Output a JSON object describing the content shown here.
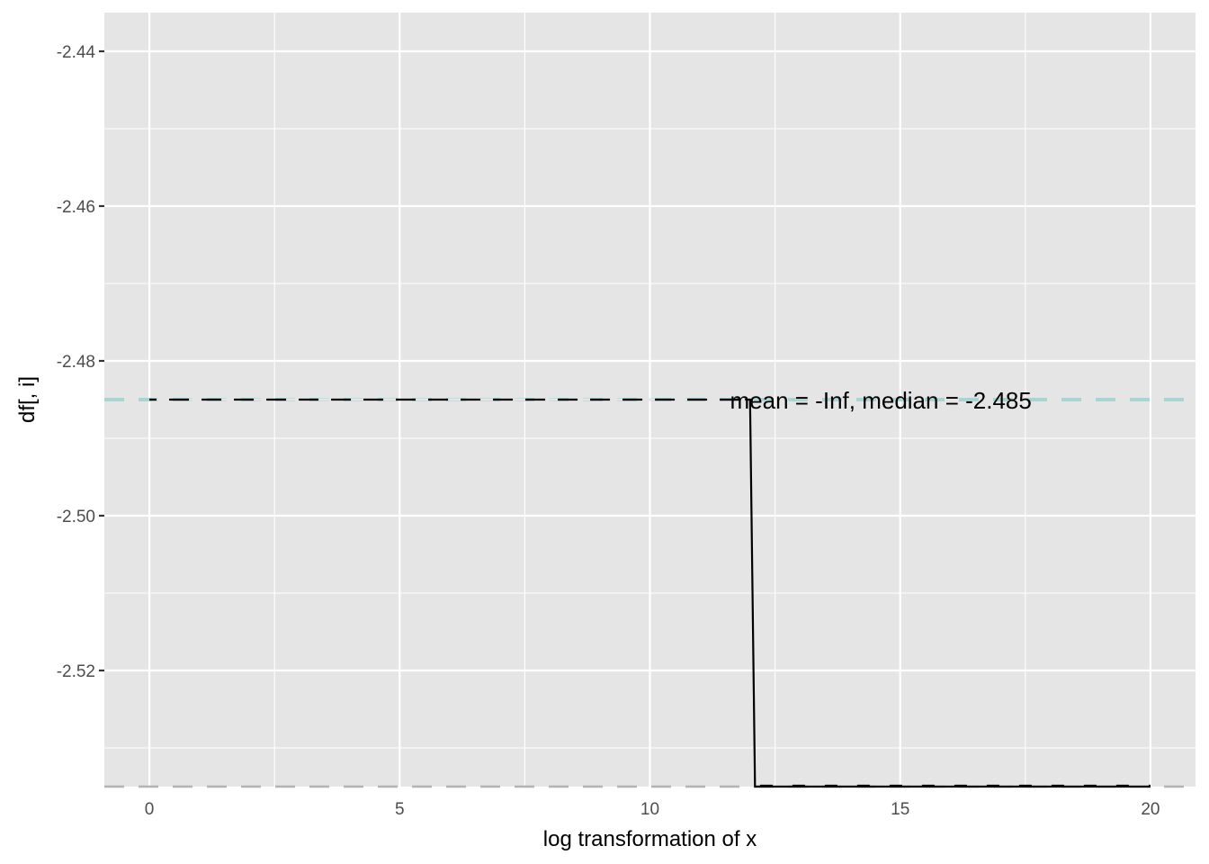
{
  "chart_data": {
    "type": "line",
    "title": "",
    "xlabel": "log transformation of x",
    "ylabel": "df[, i]",
    "xlim": [
      -0.9,
      20.9
    ],
    "ylim": [
      -2.535,
      -2.435
    ],
    "x_ticks": [
      0,
      5,
      10,
      15,
      20
    ],
    "x_tick_labels": [
      "0",
      "5",
      "10",
      "15",
      "20"
    ],
    "y_ticks": [
      -2.44,
      -2.46,
      -2.48,
      -2.5,
      -2.52
    ],
    "y_tick_labels": [
      "-2.44",
      "-2.46",
      "-2.48",
      "-2.50",
      "-2.52"
    ],
    "grid": true,
    "series": [
      {
        "x": [
          0.0,
          11.9,
          11.9,
          12.0,
          12.1,
          12.2,
          20.0
        ],
        "y": [
          -2.485,
          -2.485,
          -2.485,
          -2.485,
          -2.535,
          -2.535,
          -2.535
        ]
      }
    ],
    "reference_lines": [
      {
        "kind": "mean",
        "y": "-Inf"
      },
      {
        "kind": "median",
        "y": -2.485
      }
    ],
    "annotation": {
      "text": "mean = -Inf, median = -2.485",
      "x": 11.6,
      "y": -2.485
    },
    "colors": {
      "panel": "#e5e5e5",
      "grid": "#ffffff",
      "line": "#000000",
      "median_line": "#a8d4d4",
      "mean_line": "#b3b3b3",
      "tick_text": "#4d4d4d"
    }
  }
}
